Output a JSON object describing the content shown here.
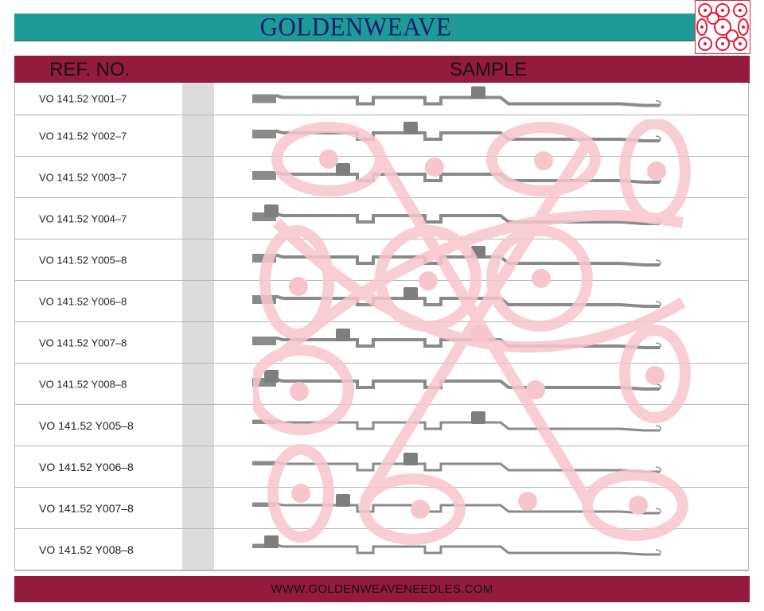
{
  "header": {
    "title": "GOLDENWEAVE"
  },
  "table": {
    "columns": [
      "REF. NO.",
      "SAMPLE"
    ],
    "rows": [
      {
        "ref": "VO 141.52 Y001–7"
      },
      {
        "ref": "VO 141.52 Y002–7"
      },
      {
        "ref": "VO 141.52 Y003–7"
      },
      {
        "ref": "VO 141.52 Y004–7"
      },
      {
        "ref": "VO 141.52 Y005–8"
      },
      {
        "ref": "VO 141.52 Y006–8"
      },
      {
        "ref": "VO 141.52 Y007–8"
      },
      {
        "ref": "VO 141.52 Y008–8"
      },
      {
        "ref": "VO 141.52 Y005–8"
      },
      {
        "ref": "VO 141.52 Y006–8"
      },
      {
        "ref": "VO 141.52 Y007–8"
      },
      {
        "ref": "VO 141.52 Y008–8"
      }
    ]
  },
  "footer": {
    "url": "WWW.GOLDENWEAVENEEDLES.COM"
  },
  "colors": {
    "title_bar": "#1e9a98",
    "header_bar": "#941a3e",
    "title_text": "#1a1f6e",
    "watermark": "#f7c6cd"
  }
}
